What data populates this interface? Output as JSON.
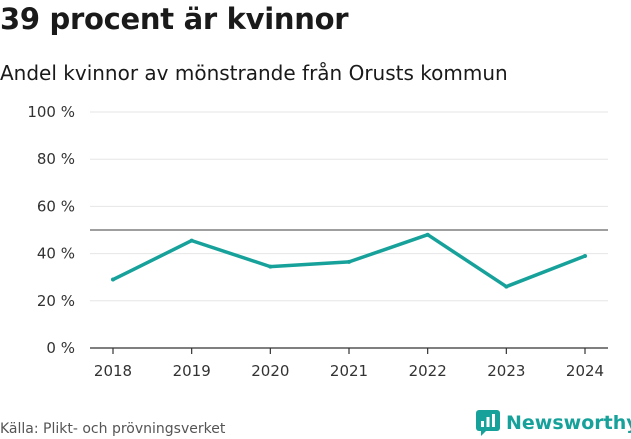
{
  "title": "39 procent är kvinnor",
  "subtitle": "Andel kvinnor av mönstrande från Orusts kommun",
  "source": "Källa: Plikt- och prövningsverket",
  "brand": "Newsworthy",
  "colors": {
    "line": "#17a19b",
    "reference": "#666666",
    "grid": "#e6e6e6",
    "axis": "#333333"
  },
  "chart_data": {
    "type": "line",
    "title": "39 procent är kvinnor",
    "subtitle": "Andel kvinnor av mönstrande från Orusts kommun",
    "xlabel": "",
    "ylabel": "",
    "categories": [
      "2018",
      "2019",
      "2020",
      "2021",
      "2022",
      "2023",
      "2024"
    ],
    "series": [
      {
        "name": "Andel kvinnor",
        "values": [
          29,
          45.5,
          34.5,
          36.5,
          48,
          26,
          39
        ]
      }
    ],
    "reference_line": 50,
    "ylim": [
      0,
      100
    ],
    "yticks": [
      0,
      20,
      40,
      60,
      80,
      100
    ],
    "ytick_labels": [
      "0 %",
      "20 %",
      "40 %",
      "60 %",
      "80 %",
      "100 %"
    ],
    "grid": true,
    "legend": "none"
  }
}
